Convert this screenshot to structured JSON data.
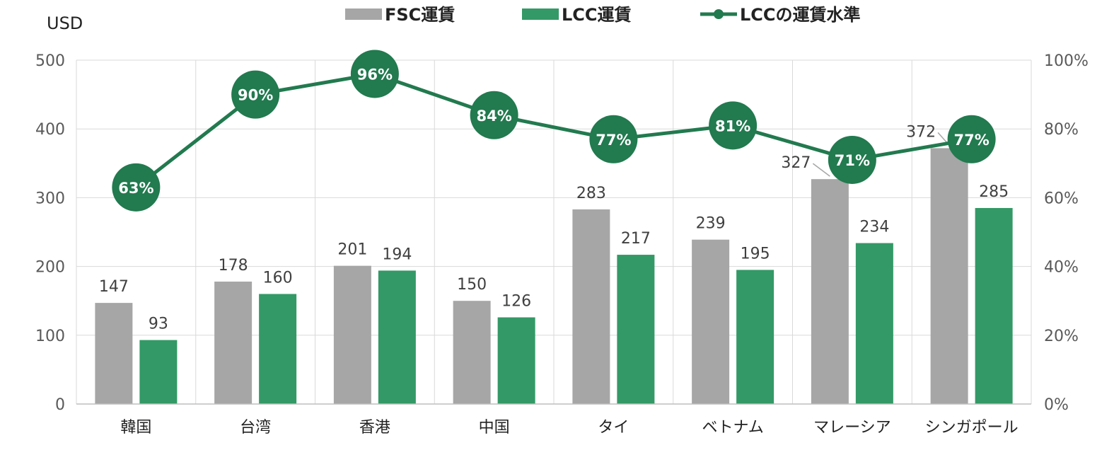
{
  "chart_data": {
    "type": "bar",
    "ylabel": "USD",
    "categories": [
      "韓国",
      "台湾",
      "香港",
      "中国",
      "タイ",
      "ベトナム",
      "マレーシア",
      "シンガポール"
    ],
    "series": [
      {
        "name": "FSC運賃",
        "type": "bar",
        "axis": "left",
        "values": [
          147,
          178,
          201,
          150,
          283,
          239,
          327,
          372
        ]
      },
      {
        "name": "LCC運賃",
        "type": "bar",
        "axis": "left",
        "values": [
          93,
          160,
          194,
          126,
          217,
          195,
          234,
          285
        ]
      },
      {
        "name": "LCCの運賃水準",
        "type": "line",
        "axis": "right",
        "values": [
          63,
          90,
          96,
          84,
          77,
          81,
          71,
          77
        ],
        "labels": [
          "63%",
          "90%",
          "96%",
          "84%",
          "77%",
          "81%",
          "71%",
          "77%"
        ]
      }
    ],
    "ylim": [
      0,
      500
    ],
    "yticks": [
      "0",
      "100",
      "200",
      "300",
      "400",
      "500"
    ],
    "y2lim": [
      0,
      100
    ],
    "y2ticks": [
      "0%",
      "20%",
      "40%",
      "60%",
      "80%",
      "100%"
    ],
    "legend_position": "top",
    "grid": true,
    "colors": {
      "fsc": "#a6a6a6",
      "lcc": "#339966",
      "line": "#227a4f"
    }
  }
}
